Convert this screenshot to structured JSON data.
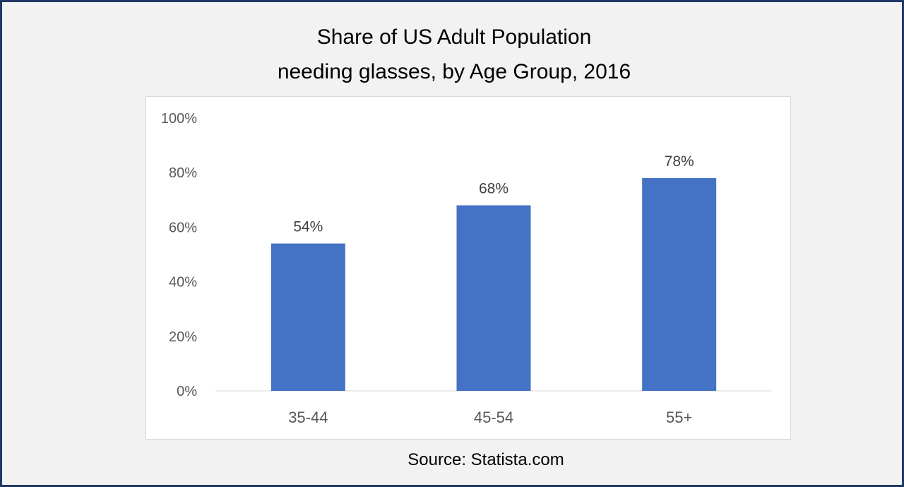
{
  "chart_data": {
    "type": "bar",
    "title": "Share of US Adult Population needing glasses, by Age Group, 2016",
    "title_lines": [
      "Share of US Adult Population",
      "needing glasses, by Age Group, 2016"
    ],
    "categories": [
      "35-44",
      "45-54",
      "55+"
    ],
    "values": [
      54,
      68,
      78
    ],
    "data_labels": [
      "54%",
      "68%",
      "78%"
    ],
    "ylim": [
      0,
      100
    ],
    "yticks": [
      0,
      20,
      40,
      60,
      80,
      100
    ],
    "ytick_labels": [
      "0%",
      "20%",
      "40%",
      "60%",
      "80%",
      "100%"
    ],
    "xlabel": "",
    "ylabel": "",
    "grid": false,
    "bar_color": "#4472c4",
    "source": "Source: Statista.com"
  }
}
